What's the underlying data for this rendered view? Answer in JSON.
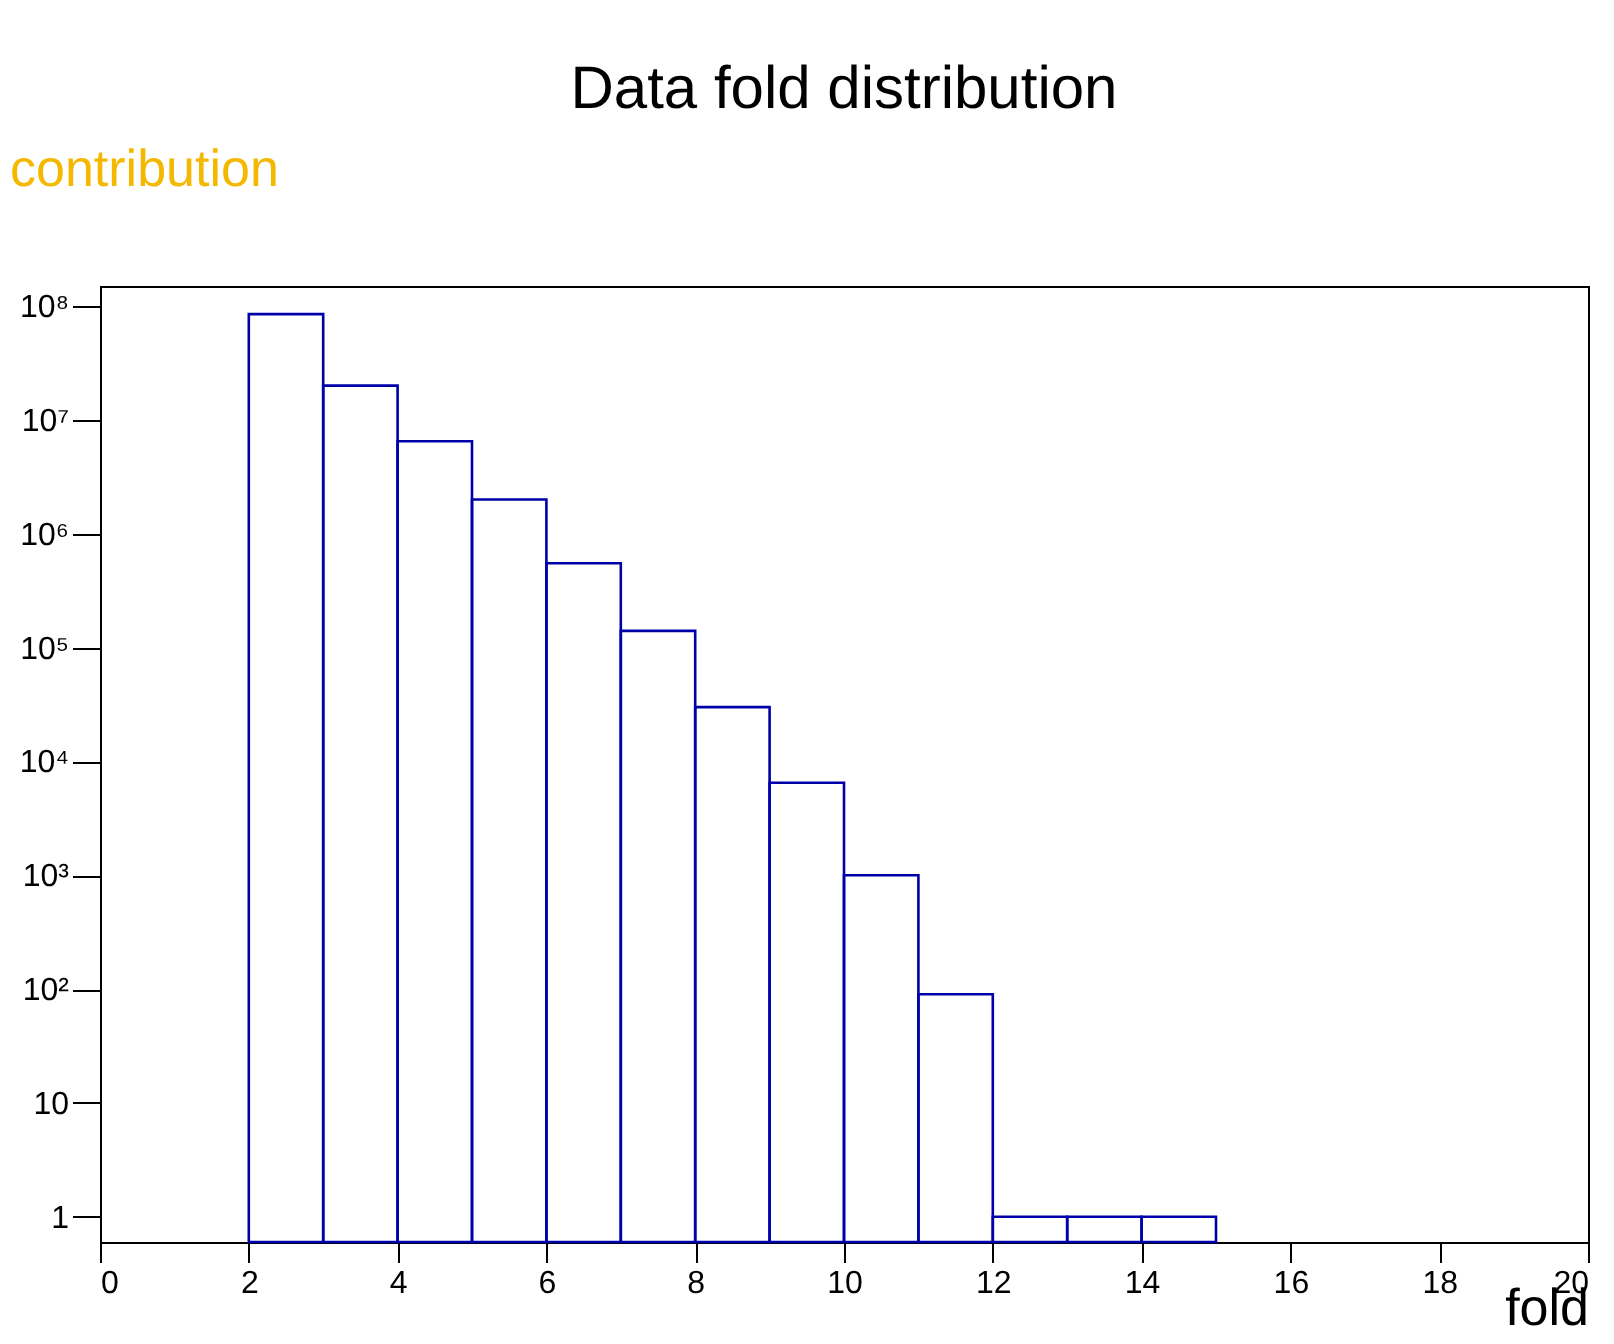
{
  "chart_data": {
    "type": "histogram",
    "title": "Data fold distribution",
    "xlabel": "fold",
    "annotations": [
      "contribution"
    ],
    "bins": [
      2,
      3,
      4,
      5,
      6,
      7,
      8,
      9,
      10,
      11,
      12,
      13,
      14,
      15
    ],
    "values": [
      85000000,
      20000000,
      6500000,
      2000000,
      550000,
      140000,
      30000,
      6500,
      1000,
      90,
      1,
      1,
      1
    ],
    "color": "#0000aa",
    "log": "y",
    "grid": false,
    "xlim": [
      0,
      20
    ],
    "xticks": [
      0,
      2,
      4,
      6,
      8,
      10,
      12,
      14,
      16,
      18,
      20
    ],
    "ylim": [
      0.6,
      150000000
    ],
    "yticks": [
      1,
      10,
      {
        "value": 100,
        "label": "10²"
      },
      {
        "value": 1000,
        "label": "10³"
      },
      {
        "value": 10000,
        "label": "10⁴"
      },
      {
        "value": 100000,
        "label": "10⁵"
      },
      {
        "value": 1000000,
        "label": "10⁶"
      },
      {
        "value": 10000000,
        "label": "10⁷"
      },
      {
        "value": 100000000,
        "label": "10⁸"
      }
    ]
  }
}
